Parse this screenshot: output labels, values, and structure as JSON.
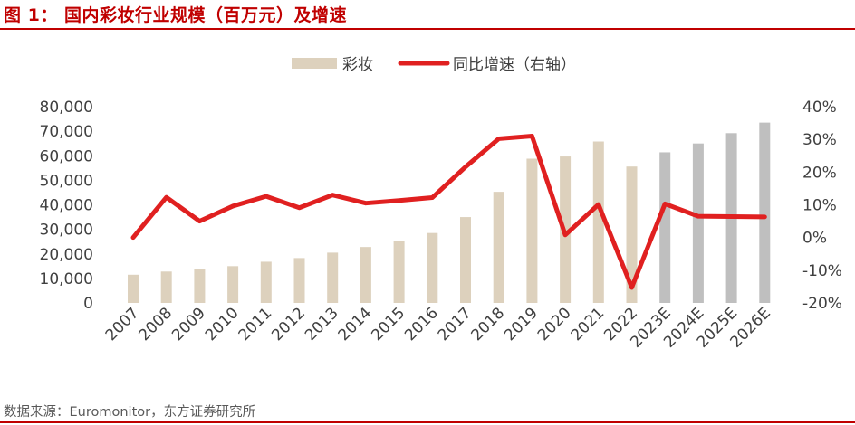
{
  "title": "图 1：  国内彩妆行业规模（百万元）及增速",
  "source": "数据来源：Euromonitor，东方证券研究所",
  "chart_data": {
    "type": "bar",
    "categories": [
      "2007",
      "2008",
      "2009",
      "2010",
      "2011",
      "2012",
      "2013",
      "2014",
      "2015",
      "2016",
      "2017",
      "2018",
      "2019",
      "2020",
      "2021",
      "2022",
      "2023E",
      "2024E",
      "2025E",
      "2026E"
    ],
    "series": [
      {
        "name": "彩妆",
        "type": "bar",
        "axis": "left",
        "values": [
          11500,
          12800,
          13800,
          15000,
          16800,
          18300,
          20500,
          22800,
          25400,
          28500,
          35000,
          45300,
          58800,
          59700,
          65800,
          55600,
          61400,
          65000,
          69200,
          73500
        ],
        "colors": {
          "actual": "#ddd1bd",
          "forecast": "#bfbfbf"
        }
      },
      {
        "name": "同比增速（右轴）",
        "type": "line",
        "axis": "right",
        "values": [
          0.0,
          12.3,
          5.0,
          9.6,
          12.6,
          9.1,
          13.0,
          10.5,
          11.3,
          12.2,
          21.6,
          30.2,
          31.0,
          0.8,
          10.1,
          -15.3,
          10.3,
          6.5,
          6.4,
          6.3
        ],
        "color": "#e02020"
      }
    ],
    "y_left": {
      "ticks": [
        "0",
        "10,000",
        "20,000",
        "30,000",
        "40,000",
        "50,000",
        "60,000",
        "70,000",
        "80,000"
      ],
      "min": 0,
      "max": 80000
    },
    "y_right": {
      "ticks": [
        "-20%",
        "-10%",
        "0%",
        "10%",
        "20%",
        "30%",
        "40%"
      ],
      "min": -20,
      "max": 40
    },
    "legend_position": "top-center",
    "grid": false
  }
}
